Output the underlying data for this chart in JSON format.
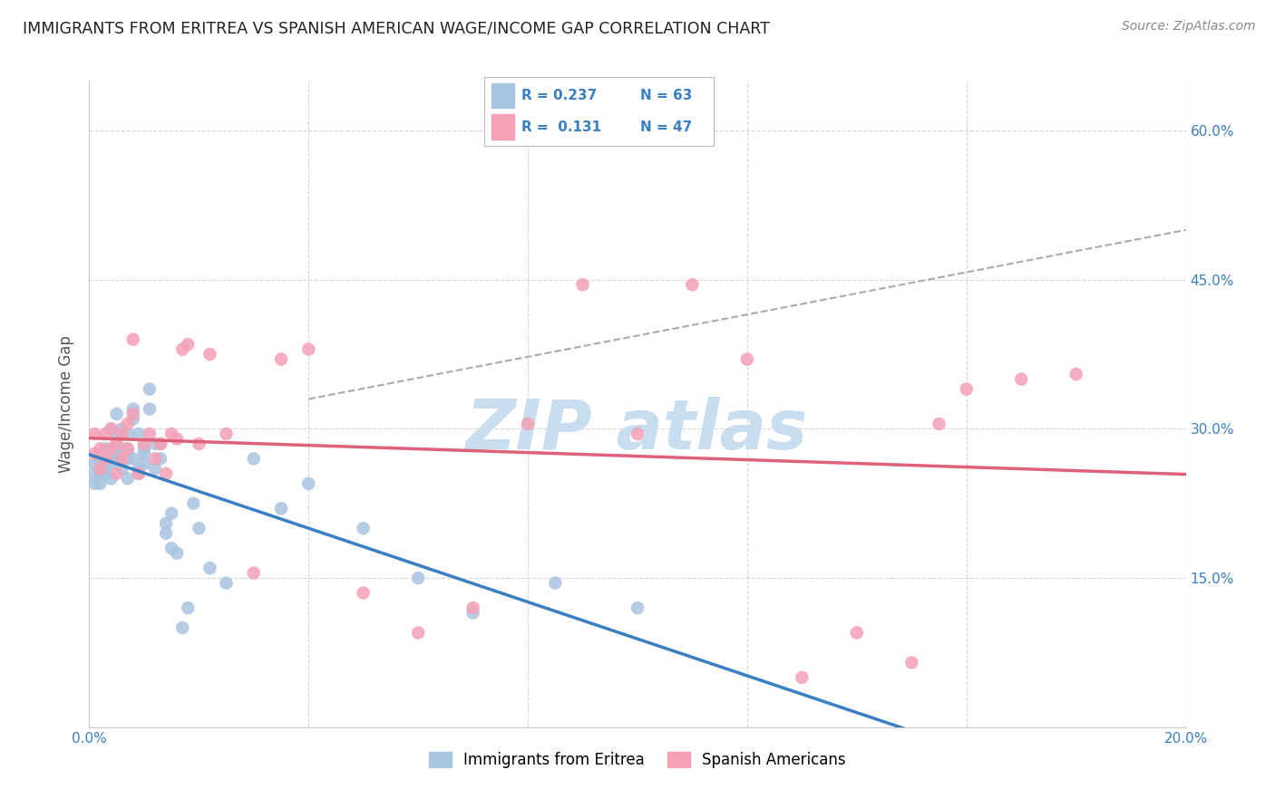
{
  "title": "IMMIGRANTS FROM ERITREA VS SPANISH AMERICAN WAGE/INCOME GAP CORRELATION CHART",
  "source": "Source: ZipAtlas.com",
  "ylabel": "Wage/Income Gap",
  "xmin": 0.0,
  "xmax": 0.2,
  "ymin": 0.0,
  "ymax": 0.65,
  "y_ticks_right": [
    0.15,
    0.3,
    0.45,
    0.6
  ],
  "y_tick_labels_right": [
    "15.0%",
    "30.0%",
    "45.0%",
    "60.0%"
  ],
  "legend_label1": "Immigrants from Eritrea",
  "legend_label2": "Spanish Americans",
  "R1": "0.237",
  "N1": "63",
  "R2": "0.131",
  "N2": "47",
  "color_blue": "#a8c4e0",
  "color_pink": "#f4a0b5",
  "line_color_blue": "#3a7fc1",
  "line_color_pink": "#e0607a",
  "watermark_color": "#c8ddf0",
  "background_color": "#ffffff",
  "eritrea_x": [
    0.001,
    0.001,
    0.001,
    0.002,
    0.002,
    0.002,
    0.002,
    0.003,
    0.003,
    0.003,
    0.003,
    0.003,
    0.004,
    0.004,
    0.004,
    0.004,
    0.004,
    0.005,
    0.005,
    0.005,
    0.005,
    0.006,
    0.006,
    0.006,
    0.006,
    0.007,
    0.007,
    0.007,
    0.007,
    0.008,
    0.008,
    0.008,
    0.009,
    0.009,
    0.009,
    0.01,
    0.01,
    0.01,
    0.011,
    0.011,
    0.012,
    0.012,
    0.013,
    0.013,
    0.014,
    0.014,
    0.015,
    0.015,
    0.016,
    0.017,
    0.018,
    0.019,
    0.02,
    0.022,
    0.025,
    0.03,
    0.035,
    0.04,
    0.05,
    0.06,
    0.07,
    0.085,
    0.1
  ],
  "eritrea_y": [
    0.255,
    0.265,
    0.245,
    0.27,
    0.255,
    0.26,
    0.245,
    0.28,
    0.265,
    0.255,
    0.27,
    0.26,
    0.275,
    0.265,
    0.25,
    0.3,
    0.275,
    0.315,
    0.285,
    0.27,
    0.295,
    0.275,
    0.3,
    0.26,
    0.28,
    0.28,
    0.27,
    0.25,
    0.295,
    0.27,
    0.32,
    0.31,
    0.26,
    0.295,
    0.255,
    0.28,
    0.275,
    0.265,
    0.32,
    0.34,
    0.26,
    0.285,
    0.27,
    0.285,
    0.195,
    0.205,
    0.18,
    0.215,
    0.175,
    0.1,
    0.12,
    0.225,
    0.2,
    0.16,
    0.145,
    0.27,
    0.22,
    0.245,
    0.2,
    0.15,
    0.115,
    0.145,
    0.12
  ],
  "spanish_x": [
    0.001,
    0.001,
    0.002,
    0.002,
    0.003,
    0.003,
    0.004,
    0.004,
    0.005,
    0.005,
    0.006,
    0.006,
    0.007,
    0.007,
    0.008,
    0.008,
    0.009,
    0.01,
    0.011,
    0.012,
    0.013,
    0.014,
    0.015,
    0.016,
    0.017,
    0.018,
    0.02,
    0.022,
    0.025,
    0.03,
    0.035,
    0.04,
    0.05,
    0.06,
    0.07,
    0.08,
    0.09,
    0.1,
    0.11,
    0.12,
    0.13,
    0.14,
    0.15,
    0.155,
    0.16,
    0.17,
    0.18
  ],
  "spanish_y": [
    0.275,
    0.295,
    0.26,
    0.28,
    0.295,
    0.27,
    0.28,
    0.3,
    0.285,
    0.255,
    0.295,
    0.27,
    0.305,
    0.28,
    0.315,
    0.39,
    0.255,
    0.285,
    0.295,
    0.27,
    0.285,
    0.255,
    0.295,
    0.29,
    0.38,
    0.385,
    0.285,
    0.375,
    0.295,
    0.155,
    0.37,
    0.38,
    0.135,
    0.095,
    0.12,
    0.305,
    0.445,
    0.295,
    0.445,
    0.37,
    0.05,
    0.095,
    0.065,
    0.305,
    0.34,
    0.35,
    0.355
  ]
}
